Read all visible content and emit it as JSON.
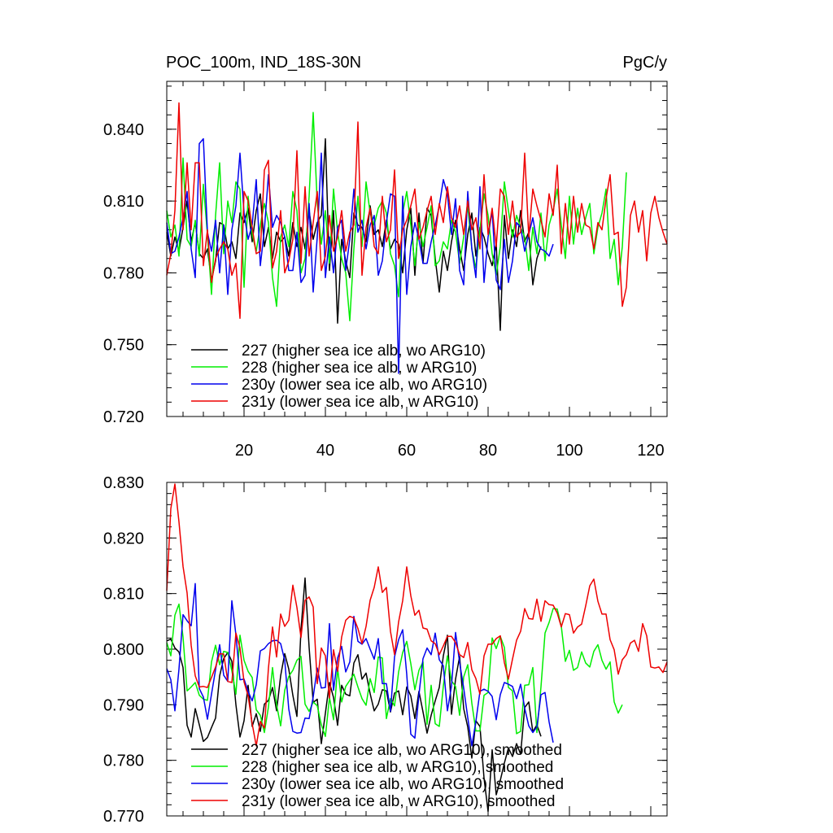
{
  "chart_data": [
    {
      "type": "line",
      "title": "POC_100m, IND_18S-30N",
      "units": "PgC/y",
      "xlim": [
        1,
        124
      ],
      "ylim": [
        0.72,
        0.86
      ],
      "x_ticks": [
        20,
        40,
        60,
        80,
        100,
        120
      ],
      "y_ticks": [
        0.72,
        0.75,
        0.78,
        0.81,
        0.84
      ],
      "y_tick_labels": [
        "0.720",
        "0.750",
        "0.780",
        "0.810",
        "0.840"
      ],
      "legend_position": "bottom-left",
      "series": [
        {
          "name": "227 (higher sea ice alb, wo ARG10)",
          "color": "#000000",
          "values": [
            0.797,
            0.787,
            0.795,
            0.789,
            0.799,
            0.81,
            0.793,
            0.801,
            0.788,
            0.786,
            0.79,
            0.777,
            0.785,
            0.801,
            0.8,
            0.79,
            0.793,
            0.786,
            0.805,
            0.801,
            0.807,
            0.793,
            0.806,
            0.813,
            0.791,
            0.799,
            0.786,
            0.797,
            0.793,
            0.795,
            0.787,
            0.801,
            0.791,
            0.799,
            0.79,
            0.806,
            0.794,
            0.801,
            0.804,
            0.836,
            0.781,
            0.806,
            0.759,
            0.794,
            0.785,
            0.778,
            0.805,
            0.8,
            0.799,
            0.793,
            0.808,
            0.796,
            0.798,
            0.791,
            0.802,
            0.79,
            0.794,
            0.792,
            0.78,
            0.798,
            0.807,
            0.779,
            0.805,
            0.784,
            0.807,
            0.804,
            0.786,
            0.772,
            0.789,
            0.781,
            0.793,
            0.802,
            0.79,
            0.781,
            0.796,
            0.805,
            0.787,
            0.799,
            0.795,
            0.788,
            0.783,
            0.792,
            0.756,
            0.804,
            0.786,
            0.798,
            0.791,
            0.806,
            0.793,
            0.797,
            0.775,
            0.786,
            0.791
          ]
        },
        {
          "name": "228 (higher sea ice alb, w ARG10)",
          "color": "#00ee00",
          "values": [
            0.806,
            0.795,
            0.8,
            0.787,
            0.828,
            0.794,
            0.791,
            0.802,
            0.787,
            0.817,
            0.796,
            0.771,
            0.804,
            0.826,
            0.788,
            0.81,
            0.801,
            0.818,
            0.815,
            0.774,
            0.812,
            0.796,
            0.789,
            0.8,
            0.809,
            0.801,
            0.778,
            0.766,
            0.795,
            0.8,
            0.791,
            0.814,
            0.806,
            0.78,
            0.786,
            0.812,
            0.847,
            0.809,
            0.792,
            0.806,
            0.784,
            0.815,
            0.797,
            0.786,
            0.78,
            0.76,
            0.79,
            0.812,
            0.791,
            0.818,
            0.805,
            0.8,
            0.807,
            0.81,
            0.805,
            0.788,
            0.783,
            0.77,
            0.805,
            0.814,
            0.8,
            0.783,
            0.801,
            0.791,
            0.799,
            0.808,
            0.783,
            0.785,
            0.793,
            0.79,
            0.802,
            0.797,
            0.784,
            0.795,
            0.808,
            0.79,
            0.782,
            0.798,
            0.813,
            0.804,
            0.788,
            0.779,
            0.791,
            0.818,
            0.806,
            0.795,
            0.804,
            0.799,
            0.795,
            0.781,
            0.799,
            0.788,
            0.805,
            0.785,
            0.8,
            0.806,
            0.815,
            0.8,
            0.786,
            0.812,
            0.792,
            0.807,
            0.796,
            0.803,
            0.809,
            0.788,
            0.799,
            0.805,
            0.815,
            0.786,
            0.794,
            0.775,
            0.791,
            0.822
          ]
        },
        {
          "name": "230y (lower sea ice alb, wo ARG10)",
          "color": "#0000ee",
          "values": [
            0.801,
            0.788,
            0.789,
            0.795,
            0.803,
            0.814,
            0.79,
            0.778,
            0.834,
            0.836,
            0.797,
            0.789,
            0.802,
            0.78,
            0.8,
            0.771,
            0.798,
            0.808,
            0.83,
            0.805,
            0.794,
            0.8,
            0.819,
            0.783,
            0.798,
            0.821,
            0.799,
            0.804,
            0.801,
            0.795,
            0.781,
            0.781,
            0.797,
            0.776,
            0.779,
            0.809,
            0.772,
            0.795,
            0.83,
            0.778,
            0.795,
            0.78,
            0.799,
            0.802,
            0.781,
            0.794,
            0.815,
            0.797,
            0.802,
            0.79,
            0.8,
            0.804,
            0.779,
            0.785,
            0.801,
            0.813,
            0.812,
            0.738,
            0.812,
            0.771,
            0.791,
            0.801,
            0.794,
            0.784,
            0.784,
            0.793,
            0.8,
            0.808,
            0.819,
            0.813,
            0.796,
            0.811,
            0.781,
            0.775,
            0.814,
            0.79,
            0.778,
            0.816,
            0.776,
            0.795,
            0.806,
            0.777,
            0.773,
            0.794,
            0.776,
            0.785,
            0.801,
            0.799,
            0.789,
            0.796,
            0.803,
            0.793,
            0.79,
            0.789,
            0.787,
            0.792
          ]
        },
        {
          "name": "231y (lower sea ice alb, w ARG10)",
          "color": "#ee0000",
          "values": [
            0.779,
            0.788,
            0.806,
            0.851,
            0.798,
            0.826,
            0.798,
            0.826,
            0.826,
            0.783,
            0.798,
            0.776,
            0.786,
            0.79,
            0.793,
            0.79,
            0.779,
            0.784,
            0.761,
            0.814,
            0.81,
            0.799,
            0.788,
            0.789,
            0.823,
            0.827,
            0.782,
            0.789,
            0.806,
            0.78,
            0.785,
            0.794,
            0.831,
            0.784,
            0.816,
            0.787,
            0.801,
            0.814,
            0.781,
            0.787,
            0.804,
            0.789,
            0.795,
            0.806,
            0.789,
            0.797,
            0.8,
            0.843,
            0.779,
            0.799,
            0.807,
            0.791,
            0.788,
            0.812,
            0.793,
            0.798,
            0.823,
            0.786,
            0.798,
            0.802,
            0.808,
            0.815,
            0.794,
            0.799,
            0.806,
            0.812,
            0.796,
            0.809,
            0.801,
            0.816,
            0.803,
            0.799,
            0.808,
            0.796,
            0.81,
            0.798,
            0.803,
            0.79,
            0.821,
            0.796,
            0.807,
            0.791,
            0.815,
            0.812,
            0.796,
            0.81,
            0.795,
            0.797,
            0.83,
            0.795,
            0.815,
            0.808,
            0.802,
            0.795,
            0.813,
            0.804,
            0.825,
            0.788,
            0.809,
            0.792,
            0.812,
            0.797,
            0.809,
            0.8,
            0.799,
            0.79,
            0.801,
            0.798,
            0.811,
            0.821,
            0.796,
            0.797,
            0.766,
            0.774,
            0.804,
            0.81,
            0.797,
            0.806,
            0.785,
            0.805,
            0.812,
            0.803,
            0.797,
            0.792
          ]
        }
      ]
    },
    {
      "type": "line",
      "title": "",
      "ylim": [
        0.77,
        0.83
      ],
      "y_ticks": [
        0.77,
        0.78,
        0.79,
        0.8,
        0.81,
        0.82,
        0.83
      ],
      "y_tick_labels": [
        "0.770",
        "0.780",
        "0.790",
        "0.800",
        "0.810",
        "0.820",
        "0.830"
      ],
      "legend_position": "bottom-left",
      "series": [
        {
          "name": "227 (higher sea ice alb, wo ARG10), smoothed",
          "color": "#000000",
          "values": [
            0.8015,
            0.8018,
            0.8002,
            0.7995,
            0.7967,
            0.7863,
            0.7842,
            0.7893,
            0.7864,
            0.7834,
            0.7841,
            0.7859,
            0.7876,
            0.7952,
            0.7983,
            0.7994,
            0.7978,
            0.79,
            0.7842,
            0.7871,
            0.7935,
            0.7861,
            0.7884,
            0.7852,
            0.7901,
            0.7908,
            0.7931,
            0.7889,
            0.7952,
            0.7992,
            0.7964,
            0.7917,
            0.7879,
            0.8035,
            0.8128,
            0.8003,
            0.7904,
            0.791,
            0.783,
            0.7885,
            0.794,
            0.7913,
            0.7863,
            0.7935,
            0.7919,
            0.7916,
            0.7975,
            0.799,
            0.7946,
            0.7957,
            0.792,
            0.7889,
            0.7901,
            0.7927,
            0.7925,
            0.7887,
            0.7921,
            0.7925,
            0.7882,
            0.7932,
            0.7916,
            0.7875,
            0.7924,
            0.7887,
            0.7849,
            0.7881,
            0.7907,
            0.7931,
            0.7988,
            0.8025,
            0.7883,
            0.7946,
            0.7987,
            0.7893,
            0.786,
            0.7804,
            0.7871,
            0.7861,
            0.7768,
            0.7708,
            0.7819,
            0.7738,
            0.7764,
            0.7795,
            0.7822,
            0.7807,
            0.783,
            0.7811,
            0.7895,
            0.7905,
            0.7851,
            0.7864,
            0.7843
          ]
        },
        {
          "name": "228 (higher sea ice alb, w ARG10), smoothed",
          "color": "#00ee00",
          "values": [
            0.8012,
            0.7988,
            0.8061,
            0.8081,
            0.8022,
            0.7925,
            0.7932,
            0.794,
            0.7917,
            0.791,
            0.7908,
            0.7977,
            0.8007,
            0.7972,
            0.7996,
            0.7994,
            0.7961,
            0.7919,
            0.8025,
            0.798,
            0.796,
            0.7949,
            0.7891,
            0.7881,
            0.785,
            0.7896,
            0.7967,
            0.79,
            0.7862,
            0.7926,
            0.7951,
            0.7962,
            0.798,
            0.7987,
            0.7901,
            0.7888,
            0.7905,
            0.7898,
            0.7864,
            0.7843,
            0.7913,
            0.7873,
            0.7966,
            0.7905,
            0.7933,
            0.7944,
            0.7955,
            0.7932,
            0.7911,
            0.7899,
            0.7947,
            0.7922,
            0.7986,
            0.7984,
            0.7875,
            0.7911,
            0.7898,
            0.7959,
            0.7994,
            0.8014,
            0.7974,
            0.7927,
            0.7962,
            0.7977,
            0.7865,
            0.7935,
            0.7866,
            0.7861,
            0.7934,
            0.7988,
            0.7943,
            0.7933,
            0.7881,
            0.795,
            0.7972,
            0.7903,
            0.7853,
            0.7853,
            0.7917,
            0.7922,
            0.802,
            0.8001,
            0.8023,
            0.8003,
            0.7931,
            0.7925,
            0.7848,
            0.7852,
            0.7935,
            0.7936,
            0.7967,
            0.785,
            0.7932,
            0.8029,
            0.8048,
            0.8073,
            0.8072,
            0.8041,
            0.7978,
            0.7998,
            0.7962,
            0.7967,
            0.7995,
            0.7975,
            0.7968,
            0.7996,
            0.8008,
            0.798,
            0.7964,
            0.7977,
            0.7905,
            0.7885,
            0.79
          ]
        },
        {
          "name": "230y (lower sea ice alb, wo ARG10), smoothed",
          "color": "#0000ee",
          "values": [
            0.7965,
            0.7945,
            0.7889,
            0.7964,
            0.8062,
            0.8051,
            0.8042,
            0.8118,
            0.7929,
            0.7914,
            0.7874,
            0.7919,
            0.7963,
            0.8008,
            0.7953,
            0.7942,
            0.8087,
            0.8026,
            0.7945,
            0.7946,
            0.7924,
            0.7907,
            0.7936,
            0.7997,
            0.8001,
            0.801,
            0.8015,
            0.8016,
            0.801,
            0.798,
            0.7892,
            0.7852,
            0.7849,
            0.785,
            0.7876,
            0.7875,
            0.7914,
            0.7966,
            0.793,
            0.7931,
            0.8046,
            0.7926,
            0.7984,
            0.8005,
            0.7959,
            0.7977,
            0.8059,
            0.8014,
            0.8009,
            0.8019,
            0.8,
            0.7982,
            0.8019,
            0.7938,
            0.7938,
            0.7888,
            0.7986,
            0.8017,
            0.8035,
            0.7955,
            0.7847,
            0.784,
            0.7918,
            0.7983,
            0.8002,
            0.799,
            0.8029,
            0.7981,
            0.797,
            0.7889,
            0.7933,
            0.803,
            0.7976,
            0.793,
            0.7877,
            0.7826,
            0.787,
            0.7924,
            0.7928,
            0.7924,
            0.7915,
            0.7873,
            0.7918,
            0.794,
            0.7937,
            0.7933,
            0.7911,
            0.7937,
            0.7894,
            0.7862,
            0.785,
            0.786,
            0.7918,
            0.7922,
            0.7869,
            0.7832
          ]
        },
        {
          "name": "231y (lower sea ice alb, w ARG10), smoothed",
          "color": "#ee0000",
          "values": [
            0.8105,
            0.8253,
            0.8297,
            0.8229,
            0.8149,
            0.8101,
            0.8007,
            0.7952,
            0.7932,
            0.7933,
            0.7931,
            0.7949,
            0.7968,
            0.7992,
            0.7991,
            0.7942,
            0.794,
            0.8029,
            0.8002,
            0.7941,
            0.7916,
            0.7866,
            0.7826,
            0.787,
            0.7858,
            0.7966,
            0.804,
            0.7986,
            0.8063,
            0.8041,
            0.8052,
            0.8115,
            0.8075,
            0.8021,
            0.8088,
            0.8094,
            0.8076,
            0.7938,
            0.8002,
            0.7988,
            0.7912,
            0.7999,
            0.796,
            0.8022,
            0.8052,
            0.8059,
            0.8056,
            0.8037,
            0.801,
            0.8041,
            0.8088,
            0.8111,
            0.8148,
            0.8102,
            0.8111,
            0.8032,
            0.799,
            0.8049,
            0.8087,
            0.8148,
            0.8096,
            0.8061,
            0.807,
            0.8038,
            0.8036,
            0.8015,
            0.801,
            0.799,
            0.8006,
            0.8023,
            0.8023,
            0.8012,
            0.799,
            0.7985,
            0.8012,
            0.7963,
            0.7947,
            0.7919,
            0.7988,
            0.8009,
            0.8009,
            0.8019,
            0.8024,
            0.7976,
            0.7946,
            0.7982,
            0.8016,
            0.8032,
            0.8073,
            0.8055,
            0.8054,
            0.809,
            0.805,
            0.8087,
            0.808,
            0.8079,
            0.8065,
            0.804,
            0.8064,
            0.8062,
            0.8029,
            0.804,
            0.8045,
            0.8078,
            0.8114,
            0.8126,
            0.8086,
            0.8063,
            0.8063,
            0.8017,
            0.7999,
            0.7955,
            0.7981,
            0.799,
            0.8011,
            0.8016,
            0.7996,
            0.8046,
            0.8024,
            0.7968,
            0.7966,
            0.7968,
            0.7958,
            0.7977
          ]
        }
      ]
    }
  ]
}
